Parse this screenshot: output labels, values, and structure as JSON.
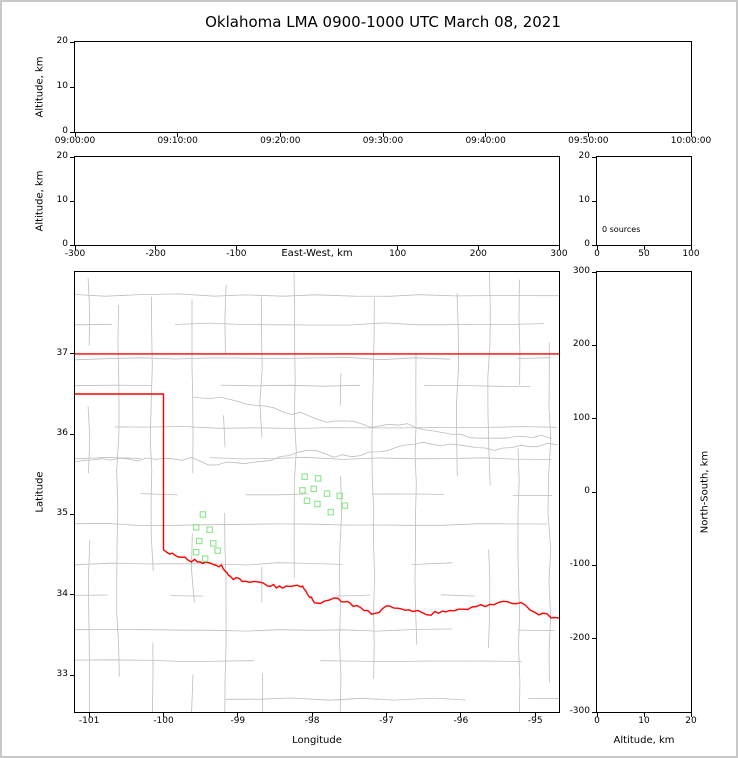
{
  "title": "Oklahoma LMA 0900-1000 UTC March 08, 2021",
  "colors": {
    "background": "#ffffff",
    "frame_border": "#c8c8c8",
    "axis": "#000000",
    "county_lines": "#bdbdbd",
    "state_boundary": "#ff0000",
    "station_marker": "#8ce68c"
  },
  "chart_data": [
    {
      "id": "time_height",
      "type": "scatter",
      "panel": "altitude vs time (no sources plotted)",
      "ylabel": "Altitude, km",
      "ylim": [
        0,
        20
      ],
      "yticks": [
        0,
        10,
        20
      ],
      "xtick_labels": [
        "09:00:00",
        "09:10:00",
        "09:20:00",
        "09:30:00",
        "09:40:00",
        "09:50:00",
        "10:00:00"
      ],
      "points": []
    },
    {
      "id": "east_west_height",
      "type": "scatter",
      "panel": "altitude vs east-west distance (no sources plotted)",
      "xlabel": "East-West, km",
      "ylabel": "Altitude, km",
      "xlim": [
        -300,
        300
      ],
      "xticks": [
        -300,
        -200,
        -100,
        100,
        200,
        300
      ],
      "ylim": [
        0,
        20
      ],
      "yticks": [
        0,
        10,
        20
      ],
      "points": []
    },
    {
      "id": "source_histogram",
      "type": "scatter",
      "panel": "altitude vs source count",
      "annotation": "0 sources",
      "xlim": [
        0,
        100
      ],
      "xticks": [
        0,
        50,
        100
      ],
      "ylim": [
        0,
        20
      ],
      "yticks": [
        0,
        10,
        20
      ],
      "points": []
    },
    {
      "id": "plan_view",
      "type": "scatter",
      "panel": "plan view map with county and state boundaries and LMA station markers",
      "xlabel": "Longitude",
      "ylabel": "Latitude",
      "xlim": [
        -101.19,
        -94.68
      ],
      "xticks": [
        -101,
        -100,
        -99,
        -98,
        -97,
        -96,
        -95
      ],
      "ylim": [
        32.54,
        38.02
      ],
      "yticks": [
        33,
        34,
        35,
        36,
        37
      ],
      "marker": {
        "shape": "open-square",
        "color": "#8ce68c"
      },
      "stations_lon_lat": [
        [
          -98.1,
          35.47
        ],
        [
          -97.92,
          35.45
        ],
        [
          -98.13,
          35.3
        ],
        [
          -97.98,
          35.32
        ],
        [
          -97.8,
          35.26
        ],
        [
          -98.07,
          35.17
        ],
        [
          -97.93,
          35.13
        ],
        [
          -97.63,
          35.23
        ],
        [
          -97.56,
          35.11
        ],
        [
          -97.75,
          35.03
        ],
        [
          -99.47,
          35.0
        ],
        [
          -99.56,
          34.84
        ],
        [
          -99.38,
          34.81
        ],
        [
          -99.52,
          34.67
        ],
        [
          -99.33,
          34.64
        ],
        [
          -99.56,
          34.53
        ],
        [
          -99.27,
          34.55
        ],
        [
          -99.44,
          34.45
        ]
      ],
      "state_boundary": {
        "north_border_lat": 37.0,
        "panhandle_south_lat": 36.5,
        "west_border_lon": -100.0,
        "red_river_lon_lat": [
          [
            -100.0,
            34.56
          ],
          [
            -99.8,
            34.47
          ],
          [
            -99.58,
            34.42
          ],
          [
            -99.4,
            34.4
          ],
          [
            -99.22,
            34.36
          ],
          [
            -99.1,
            34.21
          ],
          [
            -98.9,
            34.17
          ],
          [
            -98.6,
            34.13
          ],
          [
            -98.4,
            34.09
          ],
          [
            -98.15,
            34.12
          ],
          [
            -98.05,
            33.99
          ],
          [
            -97.95,
            33.89
          ],
          [
            -97.65,
            33.95
          ],
          [
            -97.45,
            33.87
          ],
          [
            -97.2,
            33.76
          ],
          [
            -96.95,
            33.86
          ],
          [
            -96.7,
            33.81
          ],
          [
            -96.4,
            33.76
          ],
          [
            -96.15,
            33.81
          ],
          [
            -95.85,
            33.84
          ],
          [
            -95.55,
            33.89
          ],
          [
            -95.25,
            33.91
          ],
          [
            -94.95,
            33.77
          ],
          [
            -94.68,
            33.71
          ]
        ]
      }
    },
    {
      "id": "north_south_height",
      "type": "scatter",
      "panel": "north-south distance vs altitude (no sources plotted)",
      "xlabel": "Altitude, km",
      "ylabel_right": "North-South, km",
      "xlim": [
        0,
        20
      ],
      "xticks": [
        0,
        10,
        20
      ],
      "ylim": [
        -300,
        300
      ],
      "yticks": [
        -300,
        -200,
        -100,
        0,
        100,
        200,
        300
      ],
      "points": []
    }
  ]
}
